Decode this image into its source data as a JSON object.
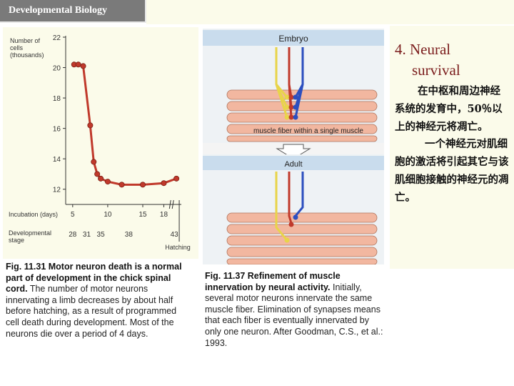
{
  "slide_title": "Developmental Biology",
  "heading": {
    "line1": "4. Neural",
    "line2": "survival"
  },
  "chinese_text": {
    "para1": "在中枢和周边神经系统的发育中，50％以上的神经元将凋亡。",
    "para2": "一个神经元对肌细胞的激活将引起其它与该肌细胞接触的神经元的凋亡。"
  },
  "figure_left": {
    "caption_bold": "Fig. 11.31  Motor neuron death is a normal part of development in the chick spinal cord.",
    "caption_rest": "The number of motor neurons innervating a limb decreases by about half before hatching, as a result of programmed cell death during development. Most of the neurons die over a period of 4 days."
  },
  "figure_right": {
    "label_embryo": "Embryo",
    "label_adult": "Adult",
    "label_muscle": "muscle fiber within a single muscle",
    "caption_bold": "Fig. 11.37  Refinement of muscle innervation by neural activity.",
    "caption_rest": "Initially, several motor neurons innervate the same muscle fiber. Elimination of synapses means that each fiber is eventually innervated by only one neuron. After Goodman, C.S., et al.: 1993."
  },
  "chart_data": {
    "type": "line",
    "ylabel": "Number of cells (thousands)",
    "ylabel_lines": [
      "Number of",
      "cells",
      "(thousands)"
    ],
    "xlabel_incubation": "Incubation (days)",
    "xlabel_stage": "Developmental stage",
    "xlabel_stage_lines": [
      "Developmental",
      "stage"
    ],
    "hatching_label": "Hatching",
    "ylim": [
      11,
      22
    ],
    "y_ticks": [
      12,
      14,
      16,
      18,
      20,
      22
    ],
    "x_ticks": [
      5,
      10,
      15,
      18
    ],
    "stage_ticks": [
      {
        "day": 5,
        "label": "28"
      },
      {
        "day": 7,
        "label": "31"
      },
      {
        "day": 9,
        "label": "35"
      },
      {
        "day": 13,
        "label": "38"
      },
      {
        "day": 19.5,
        "label": "43"
      }
    ],
    "series": [
      {
        "color": "#c0392b",
        "x": [
          5.2,
          5.8,
          6.5,
          7.5,
          8.0,
          8.5,
          9.0,
          10.0,
          12.0,
          15.0,
          18.0,
          19.8
        ],
        "y": [
          20.2,
          20.2,
          20.1,
          16.2,
          13.8,
          13.0,
          12.7,
          12.5,
          12.3,
          12.3,
          12.4,
          12.7
        ]
      }
    ]
  }
}
